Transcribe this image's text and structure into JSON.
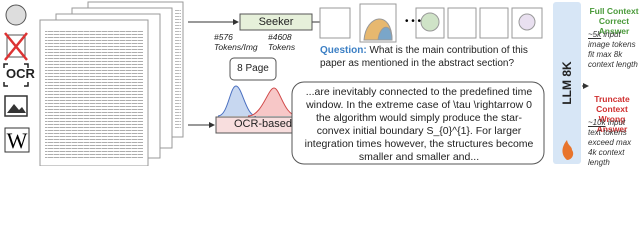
{
  "icons": {
    "ocr": "OCR"
  },
  "seeker": {
    "label": "Seeker",
    "img_tokens": "#576\nTokens/Img",
    "text_tokens": "#4608\nTokens"
  },
  "pages": "8 Page",
  "ocr_box": "OCR-based",
  "question": {
    "label": "Question:",
    "text": "What is the main contribution of this paper as mentioned in the abstract section?"
  },
  "passage": "...are inevitably connected to the predefined time window. In the extreme case of \\tau \\rightarrow 0 the algorithm would simply produce the star-convex initial boundary S_{0}^{1}. For larger integration times however, the structures become smaller and smaller and...",
  "llm": "LLM 8K",
  "results": [
    {
      "title": "Full Context\nCorrect Answer",
      "highlight": "~5k",
      "text": "input image tokens fit max 8k context length"
    },
    {
      "title": "Truncate Context\nWrong Answer",
      "highlight": "~10k",
      "text": "input text tokens exceed max 4k context length"
    }
  ]
}
